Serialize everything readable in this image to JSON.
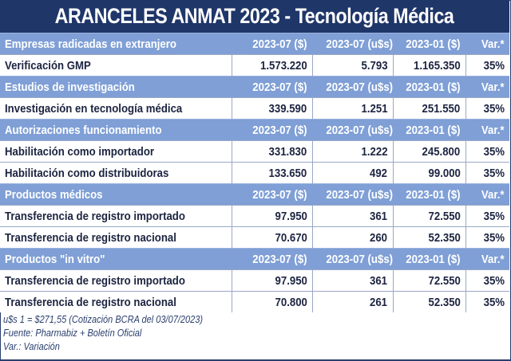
{
  "title": "ARANCELES ANMAT 2023 - Tecnología Médica",
  "columns": [
    "2023-07 ($)",
    "2023-07 (u$s)",
    "2023-01 ($)",
    "Var.*"
  ],
  "sections": [
    {
      "name": "Empresas radicadas en extranjero",
      "rows": [
        {
          "label": "Verificación GMP",
          "ars_2023_07": "1.573.220",
          "usd_2023_07": "5.793",
          "ars_2023_01": "1.165.350",
          "var": "35%"
        }
      ]
    },
    {
      "name": "Estudios de investigación",
      "rows": [
        {
          "label": "Investigación en tecnología médica",
          "ars_2023_07": "339.590",
          "usd_2023_07": "1.251",
          "ars_2023_01": "251.550",
          "var": "35%"
        }
      ]
    },
    {
      "name": "Autorizaciones funcionamiento",
      "rows": [
        {
          "label": "Habilitación como importador",
          "ars_2023_07": "331.830",
          "usd_2023_07": "1.222",
          "ars_2023_01": "245.800",
          "var": "35%"
        },
        {
          "label": "Habilitación como distribuidoras",
          "ars_2023_07": "133.650",
          "usd_2023_07": "492",
          "ars_2023_01": "99.000",
          "var": "35%"
        }
      ]
    },
    {
      "name": "Productos médicos",
      "rows": [
        {
          "label": "Transferencia de registro importado",
          "ars_2023_07": "97.950",
          "usd_2023_07": "361",
          "ars_2023_01": "72.550",
          "var": "35%"
        },
        {
          "label": "Transferencia de registro nacional",
          "ars_2023_07": "70.670",
          "usd_2023_07": "260",
          "ars_2023_01": "52.350",
          "var": "35%"
        }
      ]
    },
    {
      "name": "Productos \"in vitro\"",
      "rows": [
        {
          "label": "Transferencia de registro importado",
          "ars_2023_07": "97.950",
          "usd_2023_07": "361",
          "ars_2023_01": "72.550",
          "var": "35%"
        },
        {
          "label": "Transferencia de registro nacional",
          "ars_2023_07": "70.800",
          "usd_2023_07": "261",
          "ars_2023_01": "52.350",
          "var": "35%"
        }
      ]
    }
  ],
  "notes": [
    "u$s 1 = $271,55 (Cotización BCRA del 03/07/2023)",
    "Fuente: Pharmabiz + Boletín Oficial",
    "Var.: Variación"
  ],
  "colors": {
    "title_bg": "#1f3669",
    "header_bg": "#7f9fd6",
    "text": "#1c2440"
  }
}
